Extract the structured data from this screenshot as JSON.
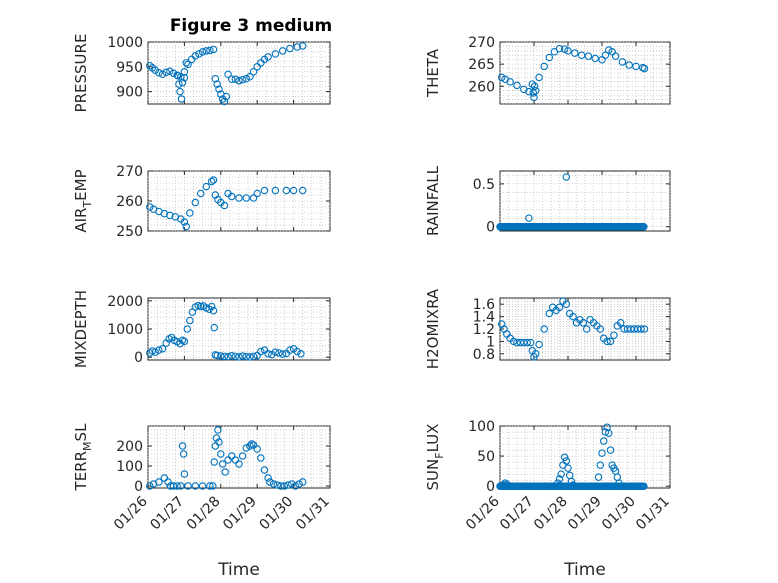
{
  "figure_title": "Figure 3 medium",
  "colors": {
    "marker": "#0072BD",
    "axes": "#262626",
    "grid": "#b0b0b0",
    "background": "#ffffff"
  },
  "x_axis": {
    "label": "Time",
    "ticks": [
      "01/26",
      "01/27",
      "01/28",
      "01/29",
      "01/30",
      "01/31"
    ],
    "range": [
      26,
      31
    ]
  },
  "chart_data": [
    {
      "id": "pressure",
      "type": "scatter",
      "title": "Figure 3 medium",
      "ylabel": "PRESSURE",
      "ylim": [
        875,
        1000
      ],
      "yticks": [
        900,
        950,
        1000
      ],
      "ytick_labels": [
        "900",
        "950",
        "1000"
      ],
      "x": [
        26.05,
        26.12,
        26.2,
        26.3,
        26.4,
        26.5,
        26.6,
        26.7,
        26.8,
        26.9,
        27.0,
        27.1,
        27.2,
        27.3,
        27.4,
        27.5,
        27.6,
        27.7,
        27.8,
        26.82,
        26.85,
        26.88,
        26.92,
        26.95,
        27.0,
        27.05,
        27.85,
        27.9,
        27.95,
        28.0,
        28.05,
        28.1,
        28.15,
        28.2,
        28.3,
        28.4,
        28.5,
        28.6,
        28.7,
        28.8,
        28.9,
        29.0,
        29.1,
        29.2,
        29.3,
        29.5,
        29.7,
        29.9,
        30.1,
        30.25
      ],
      "y": [
        952,
        948,
        943,
        938,
        935,
        939,
        941,
        937,
        933,
        930,
        940,
        955,
        965,
        972,
        976,
        980,
        982,
        983,
        985,
        932,
        915,
        900,
        885,
        918,
        928,
        958,
        926,
        915,
        905,
        895,
        885,
        880,
        890,
        935,
        925,
        925,
        922,
        924,
        926,
        930,
        940,
        950,
        958,
        965,
        970,
        976,
        982,
        987,
        990,
        992
      ]
    },
    {
      "id": "theta",
      "type": "scatter",
      "ylabel": "THETA",
      "ylim": [
        256,
        270
      ],
      "yticks": [
        260,
        265,
        270
      ],
      "ytick_labels": [
        "260",
        "265",
        "270"
      ],
      "x": [
        26.05,
        26.15,
        26.3,
        26.5,
        26.7,
        26.85,
        26.95,
        27.0,
        27.05,
        27.15,
        27.3,
        27.45,
        27.6,
        27.75,
        27.9,
        28.0,
        28.2,
        28.4,
        28.6,
        28.8,
        29.0,
        29.1,
        29.2,
        29.3,
        29.4,
        29.6,
        29.8,
        30.0,
        30.2,
        30.25
      ],
      "y": [
        262,
        261.6,
        261,
        260.2,
        259.3,
        258.8,
        260.5,
        257.5,
        259,
        262,
        264.5,
        266.5,
        267.8,
        268.5,
        268.4,
        268,
        267.5,
        267,
        266.8,
        266.3,
        266,
        267,
        268.2,
        267.8,
        266.8,
        265.5,
        264.8,
        264.5,
        264.2,
        264
      ],
      "extra_x": [
        26.98,
        27.02
      ],
      "extra_y": [
        258.5,
        260
      ]
    },
    {
      "id": "air_temp",
      "type": "scatter",
      "ylabel_parts": [
        "AIR",
        "T",
        "EMP"
      ],
      "ylim": [
        250,
        270
      ],
      "yticks": [
        250,
        260,
        270
      ],
      "ytick_labels": [
        "250",
        "260",
        "270"
      ],
      "x": [
        26.05,
        26.15,
        26.3,
        26.45,
        26.6,
        26.75,
        26.9,
        27.0,
        27.05,
        27.15,
        27.3,
        27.45,
        27.6,
        27.75,
        27.8,
        27.85,
        27.92,
        28.0,
        28.1,
        28.2,
        28.3,
        28.5,
        28.7,
        28.9,
        29.0,
        29.2,
        29.5,
        29.8,
        30.0,
        30.25
      ],
      "y": [
        258,
        257.3,
        256.5,
        255.8,
        255.2,
        254.7,
        254,
        253,
        251.5,
        256,
        259.5,
        262.5,
        264.8,
        266.5,
        267,
        262,
        260.5,
        259.5,
        258.5,
        262.5,
        261.5,
        261,
        261,
        261,
        262.5,
        263.5,
        263.5,
        263.5,
        263.5,
        263.5
      ]
    },
    {
      "id": "rainfall",
      "type": "scatter",
      "ylabel": "RAINFALL",
      "ylim": [
        -0.05,
        0.65
      ],
      "yticks": [
        0,
        0.5
      ],
      "ytick_labels": [
        "0",
        "0.5"
      ],
      "x_range": [
        26.0,
        30.25
      ],
      "baseline": 0,
      "spikes": [
        {
          "x": 26.85,
          "y": 0.1
        },
        {
          "x": 27.95,
          "y": 0.58
        }
      ]
    },
    {
      "id": "mixdepth",
      "type": "scatter",
      "ylabel": "MIXDEPTH",
      "ylim": [
        -100,
        2100
      ],
      "yticks": [
        0,
        1000,
        2000
      ],
      "ytick_labels": [
        "0",
        "1000",
        "2000"
      ],
      "x": [
        26.05,
        26.12,
        26.2,
        26.3,
        26.4,
        26.5,
        26.58,
        26.65,
        26.72,
        26.8,
        26.88,
        26.95,
        27.0,
        27.08,
        27.15,
        27.22,
        27.3,
        27.38,
        27.45,
        27.52,
        27.6,
        27.68,
        27.75,
        27.8,
        27.82,
        27.85,
        27.9,
        28.0,
        28.1,
        28.2,
        28.3,
        28.4,
        28.5,
        28.6,
        28.7,
        28.8,
        28.9,
        29.0,
        29.1,
        29.2,
        29.3,
        29.4,
        29.5,
        29.6,
        29.7,
        29.8,
        29.9,
        30.0,
        30.1,
        30.2
      ],
      "y": [
        150,
        220,
        180,
        250,
        300,
        500,
        650,
        700,
        600,
        550,
        480,
        600,
        560,
        1000,
        1300,
        1600,
        1780,
        1830,
        1800,
        1820,
        1750,
        1700,
        1800,
        1650,
        1050,
        80,
        60,
        40,
        30,
        20,
        50,
        30,
        10,
        40,
        20,
        10,
        30,
        60,
        200,
        250,
        120,
        90,
        180,
        150,
        110,
        130,
        250,
        300,
        200,
        120
      ]
    },
    {
      "id": "h2omixra",
      "type": "scatter",
      "ylabel": "H2OMIXRA",
      "ylim": [
        0.7,
        1.7
      ],
      "yticks": [
        0.8,
        1.0,
        1.2,
        1.4,
        1.6
      ],
      "ytick_labels": [
        "0.8",
        "1",
        "1.2",
        "1.4",
        "1.6"
      ],
      "x": [
        26.05,
        26.12,
        26.2,
        26.3,
        26.4,
        26.5,
        26.6,
        26.7,
        26.8,
        26.9,
        26.95,
        27.0,
        27.05,
        27.15,
        27.3,
        27.45,
        27.55,
        27.65,
        27.75,
        27.85,
        27.95,
        28.05,
        28.15,
        28.25,
        28.35,
        28.45,
        28.55,
        28.65,
        28.75,
        28.85,
        28.95,
        29.05,
        29.15,
        29.25,
        29.35,
        29.45,
        29.55,
        29.65,
        29.75,
        29.85,
        29.95,
        30.05,
        30.15,
        30.25
      ],
      "y": [
        1.28,
        1.2,
        1.12,
        1.05,
        1.0,
        0.98,
        0.98,
        0.98,
        0.98,
        0.98,
        0.85,
        0.75,
        0.8,
        0.95,
        1.2,
        1.45,
        1.55,
        1.5,
        1.55,
        1.65,
        1.6,
        1.45,
        1.4,
        1.3,
        1.35,
        1.3,
        1.2,
        1.35,
        1.3,
        1.25,
        1.2,
        1.05,
        1.0,
        1.0,
        1.1,
        1.25,
        1.3,
        1.2,
        1.2,
        1.2,
        1.2,
        1.2,
        1.2,
        1.2
      ]
    },
    {
      "id": "terr_msl",
      "type": "scatter",
      "ylabel_parts": [
        "TERR",
        "M",
        "SL"
      ],
      "ylim": [
        -10,
        300
      ],
      "yticks": [
        0,
        100,
        200
      ],
      "ytick_labels": [
        "0",
        "100",
        "200"
      ],
      "x": [
        26.05,
        26.15,
        26.3,
        26.45,
        26.55,
        26.62,
        26.7,
        26.8,
        26.9,
        26.95,
        26.98,
        27.0,
        27.1,
        27.3,
        27.5,
        27.7,
        27.78,
        27.82,
        27.85,
        27.88,
        27.92,
        27.95,
        28.0,
        28.05,
        28.12,
        28.2,
        28.3,
        28.4,
        28.5,
        28.6,
        28.7,
        28.8,
        28.85,
        28.9,
        29.0,
        29.1,
        29.2,
        29.3,
        29.35,
        29.45,
        29.55,
        29.65,
        29.75,
        29.85,
        29.95,
        30.05,
        30.15,
        30.25
      ],
      "y": [
        0,
        10,
        20,
        40,
        20,
        0,
        0,
        0,
        0,
        200,
        160,
        60,
        0,
        0,
        0,
        0,
        0,
        120,
        200,
        240,
        280,
        220,
        160,
        110,
        70,
        130,
        150,
        130,
        110,
        150,
        190,
        200,
        210,
        205,
        185,
        140,
        80,
        40,
        20,
        10,
        5,
        0,
        0,
        5,
        10,
        0,
        10,
        20
      ]
    },
    {
      "id": "sun_flux",
      "type": "scatter",
      "ylabel_parts": [
        "SUN",
        "F",
        "LUX"
      ],
      "ylim": [
        -3,
        100
      ],
      "yticks": [
        0,
        50,
        100
      ],
      "ytick_labels": [
        "0",
        "50",
        "100"
      ],
      "x_range": [
        26.0,
        30.25
      ],
      "baseline": 0,
      "x": [
        26.1,
        26.15,
        26.2,
        26.25,
        27.7,
        27.75,
        27.8,
        27.85,
        27.9,
        27.95,
        28.0,
        28.05,
        28.1,
        28.15,
        28.9,
        28.95,
        29.0,
        29.05,
        29.1,
        29.15,
        29.2,
        29.25,
        29.3,
        29.35,
        29.4,
        29.45,
        29.5
      ],
      "y": [
        2,
        5,
        3,
        1,
        5,
        12,
        20,
        35,
        48,
        42,
        30,
        18,
        8,
        2,
        15,
        35,
        55,
        75,
        90,
        98,
        88,
        60,
        35,
        30,
        25,
        15,
        5
      ]
    }
  ]
}
